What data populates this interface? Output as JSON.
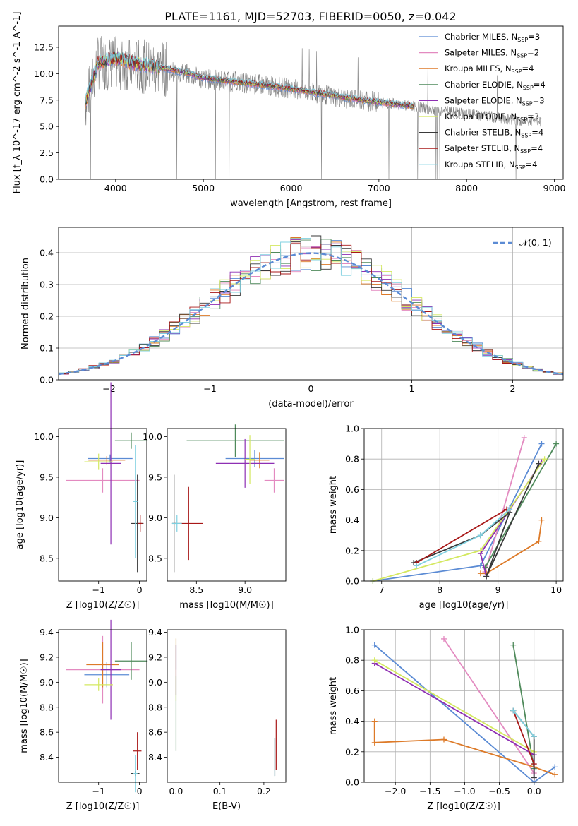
{
  "figure": {
    "title": "PLATE=1161, MJD=52703, FIBERID=0050, z=0.042"
  },
  "series_styles": [
    {
      "name": "Chabrier MILES",
      "n_ssp": "3",
      "color": "#5b8bd4"
    },
    {
      "name": "Salpeter MILES",
      "n_ssp": "2",
      "color": "#e38ac0"
    },
    {
      "name": "Kroupa MILES",
      "n_ssp": "4",
      "color": "#dd7a28"
    },
    {
      "name": "Chabrier ELODIE",
      "n_ssp": "4",
      "color": "#4f8a5b"
    },
    {
      "name": "Salpeter ELODIE",
      "n_ssp": "3",
      "color": "#8e2fb3"
    },
    {
      "name": "Kroupa ELODIE",
      "n_ssp": "3",
      "color": "#d4e860"
    },
    {
      "name": "Chabrier STELIB",
      "n_ssp": "4",
      "color": "#3a3a3a"
    },
    {
      "name": "Salpeter STELIB",
      "n_ssp": "4",
      "color": "#a81818"
    },
    {
      "name": "Kroupa STELIB",
      "n_ssp": "4",
      "color": "#7fd0e0"
    }
  ],
  "chart_data": [
    {
      "id": "spectrum",
      "type": "line",
      "title": "PLATE=1161, MJD=52703, FIBERID=0050, z=0.042",
      "xlabel": "wavelength [Angstrom, rest frame]",
      "ylabel": "Flux [f_λ 10^-17 erg cm^-2 s^-1 A^-1]",
      "xlim": [
        3350,
        9100
      ],
      "ylim": [
        0,
        14.5
      ],
      "xticks": [
        "4000",
        "5000",
        "6000",
        "7000",
        "8000",
        "9000"
      ],
      "yticks": [
        "0.0",
        "2.5",
        "5.0",
        "7.5",
        "10.0",
        "12.5"
      ],
      "legend_position": "top-right",
      "observed": {
        "name": "data",
        "color": "#808080",
        "x": [
          3650,
          3800,
          4000,
          4200,
          4500,
          4800,
          5000,
          5300,
          5600,
          5900,
          6200,
          6500,
          6800,
          7100,
          7400,
          7700,
          8000,
          8300,
          8600,
          8850
        ],
        "y": [
          7.0,
          11.0,
          11.0,
          10.8,
          10.5,
          10.0,
          9.5,
          9.3,
          9.0,
          8.7,
          8.3,
          7.8,
          7.5,
          7.2,
          6.9,
          6.5,
          6.2,
          5.9,
          5.6,
          5.4
        ]
      },
      "model_x": [
        3650,
        3800,
        4000,
        4200,
        4500,
        4800,
        5000,
        5300,
        5600,
        5900,
        6200,
        6500,
        6800,
        7100,
        7400
      ],
      "model_y": [
        7.2,
        11.0,
        11.5,
        11.0,
        10.6,
        10.1,
        9.6,
        9.3,
        9.0,
        8.7,
        8.3,
        7.9,
        7.5,
        7.2,
        6.9
      ]
    },
    {
      "id": "residuals",
      "type": "area",
      "xlabel": "(data-model)/error",
      "ylabel": "Normed distribution",
      "xlim": [
        -2.5,
        2.5
      ],
      "ylim": [
        0,
        0.48
      ],
      "xticks": [
        "−2",
        "−1",
        "0",
        "1",
        "2"
      ],
      "yticks": [
        "0.0",
        "0.1",
        "0.2",
        "0.3",
        "0.4"
      ],
      "grid": true,
      "legend": "𝒩(0, 1)",
      "legend_position": "top-right",
      "bin_width": 0.1,
      "curve_color": "#5b8bd4"
    },
    {
      "id": "age_vs_Z",
      "type": "scatter",
      "xlabel": "Z [log10(Z/Z☉)]",
      "ylabel": "age  [log10(age/yr)]",
      "xlim": [
        -1.98,
        0.18
      ],
      "ylim": [
        8.22,
        10.1
      ],
      "xticks": [
        "−1",
        "0"
      ],
      "yticks": [
        "8.5",
        "9.0",
        "9.5",
        "10.0"
      ],
      "points": [
        {
          "series": 0,
          "x": -0.72,
          "y": 9.73,
          "xerr": 0.55,
          "yerr": 0.05
        },
        {
          "series": 1,
          "x": -0.9,
          "y": 9.46,
          "xerr": 0.9,
          "yerr": 0.15
        },
        {
          "series": 2,
          "x": -0.8,
          "y": 9.71,
          "xerr": 0.45,
          "yerr": 0.05
        },
        {
          "series": 3,
          "x": -0.2,
          "y": 9.95,
          "xerr": 0.4,
          "yerr": 0.1
        },
        {
          "series": 4,
          "x": -0.7,
          "y": 9.67,
          "xerr": 0.25,
          "yerr": 1.0
        },
        {
          "series": 5,
          "x": -1.0,
          "y": 9.69,
          "xerr": 0.35,
          "yerr": 0.1
        },
        {
          "series": 6,
          "x": -0.05,
          "y": 8.93,
          "xerr": 0.15,
          "yerr": 0.6
        },
        {
          "series": 7,
          "x": 0.02,
          "y": 8.93,
          "xerr": 0.05,
          "yerr": 0.1
        },
        {
          "series": 8,
          "x": -0.1,
          "y": 9.2,
          "xerr": 0.05,
          "yerr": 0.7
        }
      ]
    },
    {
      "id": "age_vs_mass",
      "type": "scatter",
      "xlabel": "mass [log10(M/M☉)]",
      "ylabel": "",
      "xlim": [
        8.2,
        9.42
      ],
      "ylim": [
        8.22,
        10.1
      ],
      "xticks": [
        "8.5",
        "9.0"
      ],
      "yticks": [
        "8.5",
        "9.0",
        "9.5",
        "10.0"
      ],
      "points": [
        {
          "series": 0,
          "x": 9.1,
          "y": 9.73,
          "xerr": 0.3,
          "yerr": 0.1
        },
        {
          "series": 1,
          "x": 9.3,
          "y": 9.46,
          "xerr": 0.1,
          "yerr": 0.15
        },
        {
          "series": 2,
          "x": 9.15,
          "y": 9.71,
          "xerr": 0.1,
          "yerr": 0.1
        },
        {
          "series": 3,
          "x": 8.9,
          "y": 9.95,
          "xerr": 0.5,
          "yerr": 0.2
        },
        {
          "series": 4,
          "x": 9.0,
          "y": 9.67,
          "xerr": 0.3,
          "yerr": 0.3
        },
        {
          "series": 5,
          "x": 9.05,
          "y": 9.72,
          "xerr": 0.05,
          "yerr": 0.3
        },
        {
          "series": 6,
          "x": 8.27,
          "y": 8.93,
          "xerr": 0.02,
          "yerr": 0.6
        },
        {
          "series": 7,
          "x": 8.42,
          "y": 8.93,
          "xerr": 0.15,
          "yerr": 0.45
        },
        {
          "series": 8,
          "x": 8.3,
          "y": 8.93,
          "xerr": 0.05,
          "yerr": 0.1
        }
      ]
    },
    {
      "id": "mass_weight_vs_age",
      "type": "line",
      "xlabel": "age  [log10(age/yr)]",
      "ylabel": "mass weight",
      "xlim": [
        6.7,
        10.12
      ],
      "ylim": [
        0,
        1.0
      ],
      "xticks": [
        "7",
        "8",
        "9",
        "10"
      ],
      "yticks": [
        "0.0",
        "0.2",
        "0.4",
        "0.6",
        "0.8",
        "1.0"
      ],
      "grid": true,
      "series": [
        {
          "style": 0,
          "x": [
            6.85,
            8.7,
            9.2,
            9.75
          ],
          "y": [
            0.0,
            0.1,
            0.48,
            0.9
          ]
        },
        {
          "style": 1,
          "x": [
            8.78,
            9.45
          ],
          "y": [
            0.06,
            0.94
          ]
        },
        {
          "style": 2,
          "x": [
            8.7,
            8.8,
            9.7,
            9.75
          ],
          "y": [
            0.05,
            0.05,
            0.26,
            0.4
          ]
        },
        {
          "style": 3,
          "x": [
            8.78,
            10.0
          ],
          "y": [
            0.09,
            0.9
          ]
        },
        {
          "style": 4,
          "x": [
            8.8,
            8.7,
            9.75
          ],
          "y": [
            0.03,
            0.18,
            0.78
          ]
        },
        {
          "style": 5,
          "x": [
            6.85,
            8.7,
            9.8
          ],
          "y": [
            0.0,
            0.2,
            0.8
          ]
        },
        {
          "style": 6,
          "x": [
            7.55,
            8.7,
            9.2,
            8.8,
            9.7
          ],
          "y": [
            0.12,
            0.3,
            0.45,
            0.03,
            0.77
          ]
        },
        {
          "style": 7,
          "x": [
            7.6,
            9.15
          ],
          "y": [
            0.12,
            0.47
          ]
        },
        {
          "style": 8,
          "x": [
            7.6,
            8.7,
            9.2
          ],
          "y": [
            0.1,
            0.3,
            0.47
          ]
        }
      ]
    },
    {
      "id": "mass_vs_Z",
      "type": "scatter",
      "xlabel": "Z [log10(Z/Z☉)]",
      "ylabel": "mass [log10(M/M☉)]",
      "xlim": [
        -1.98,
        0.18
      ],
      "ylim": [
        8.2,
        9.42
      ],
      "xticks": [
        "−1",
        "0"
      ],
      "yticks": [
        "8.4",
        "8.6",
        "8.8",
        "9.0",
        "9.2",
        "9.4"
      ],
      "points": [
        {
          "series": 0,
          "x": -0.8,
          "y": 9.06,
          "xerr": 0.55,
          "yerr": 0.1
        },
        {
          "series": 1,
          "x": -0.9,
          "y": 9.1,
          "xerr": 0.9,
          "yerr": 0.27
        },
        {
          "series": 2,
          "x": -0.9,
          "y": 9.14,
          "xerr": 0.4,
          "yerr": 0.18
        },
        {
          "series": 3,
          "x": -0.2,
          "y": 9.17,
          "xerr": 0.4,
          "yerr": 0.15
        },
        {
          "series": 4,
          "x": -0.7,
          "y": 9.1,
          "xerr": 0.25,
          "yerr": 0.4
        },
        {
          "series": 5,
          "x": -1.0,
          "y": 8.98,
          "xerr": 0.35,
          "yerr": 0.05
        },
        {
          "series": 6,
          "x": -0.1,
          "y": 8.27,
          "xerr": 0.1,
          "yerr": 0.02
        },
        {
          "series": 7,
          "x": -0.05,
          "y": 8.45,
          "xerr": 0.1,
          "yerr": 0.15
        },
        {
          "series": 8,
          "x": -0.1,
          "y": 8.27,
          "xerr": 0.05,
          "yerr": 0.15
        }
      ]
    },
    {
      "id": "mass_vs_ebv",
      "type": "scatter",
      "xlabel": "E(B-V)",
      "ylabel": "",
      "xlim": [
        -0.02,
        0.25
      ],
      "ylim": [
        8.2,
        9.42
      ],
      "xticks": [
        "0.0",
        "0.1",
        "0.2"
      ],
      "yticks": [
        "8.4",
        "8.6",
        "8.8",
        "9.0",
        "9.2",
        "9.4"
      ],
      "points": [
        {
          "series": 0,
          "x": 0.0,
          "y": 9.2,
          "xerr": 0.0,
          "yerr": 0.1
        },
        {
          "series": 1,
          "x": 0.0,
          "y": 9.2,
          "xerr": 0.0,
          "yerr": 0.15
        },
        {
          "series": 3,
          "x": 0.0,
          "y": 8.75,
          "xerr": 0.0,
          "yerr": 0.3
        },
        {
          "series": 4,
          "x": 0.0,
          "y": 9.1,
          "xerr": 0.0,
          "yerr": 0.2
        },
        {
          "series": 5,
          "x": 0.0,
          "y": 9.1,
          "xerr": 0.0,
          "yerr": 0.25
        },
        {
          "series": 6,
          "x": 0.225,
          "y": 8.4,
          "xerr": 0.0,
          "yerr": 0.15
        },
        {
          "series": 7,
          "x": 0.228,
          "y": 8.5,
          "xerr": 0.0,
          "yerr": 0.2
        },
        {
          "series": 8,
          "x": 0.225,
          "y": 8.4,
          "xerr": 0.0,
          "yerr": 0.15
        }
      ]
    },
    {
      "id": "mass_weight_vs_Z",
      "type": "line",
      "xlabel": "Z [log10(Z/Z☉)]",
      "ylabel": "mass weight",
      "xlim": [
        -2.45,
        0.42
      ],
      "ylim": [
        0,
        1.0
      ],
      "xticks": [
        "−2.0",
        "−1.5",
        "−1.0",
        "−0.5",
        "0.0",
        "0.5"
      ],
      "yticks": [
        "0.0",
        "0.2",
        "0.4",
        "0.6",
        "0.8",
        "1.0"
      ],
      "grid": true,
      "series": [
        {
          "style": 0,
          "x": [
            -2.3,
            0.0,
            0.3
          ],
          "y": [
            0.9,
            0.0,
            0.1
          ]
        },
        {
          "style": 1,
          "x": [
            -1.3,
            0.0
          ],
          "y": [
            0.94,
            0.06
          ]
        },
        {
          "style": 2,
          "x": [
            -2.3,
            -2.3,
            -1.3,
            0.0,
            0.3
          ],
          "y": [
            0.4,
            0.26,
            0.28,
            0.1,
            0.05
          ]
        },
        {
          "style": 3,
          "x": [
            -0.3,
            0.0
          ],
          "y": [
            0.9,
            0.09
          ]
        },
        {
          "style": 4,
          "x": [
            -2.3,
            0.0,
            0.0
          ],
          "y": [
            0.78,
            0.18,
            0.03
          ]
        },
        {
          "style": 5,
          "x": [
            -2.3,
            0.0
          ],
          "y": [
            0.8,
            0.2
          ]
        },
        {
          "style": 6,
          "x": [
            -0.3,
            0.0,
            0.0
          ],
          "y": [
            0.47,
            0.3,
            0.03
          ]
        },
        {
          "style": 7,
          "x": [
            -0.3,
            0.0
          ],
          "y": [
            0.47,
            0.12
          ]
        },
        {
          "style": 8,
          "x": [
            -0.3,
            0.0
          ],
          "y": [
            0.47,
            0.3
          ]
        }
      ]
    }
  ]
}
